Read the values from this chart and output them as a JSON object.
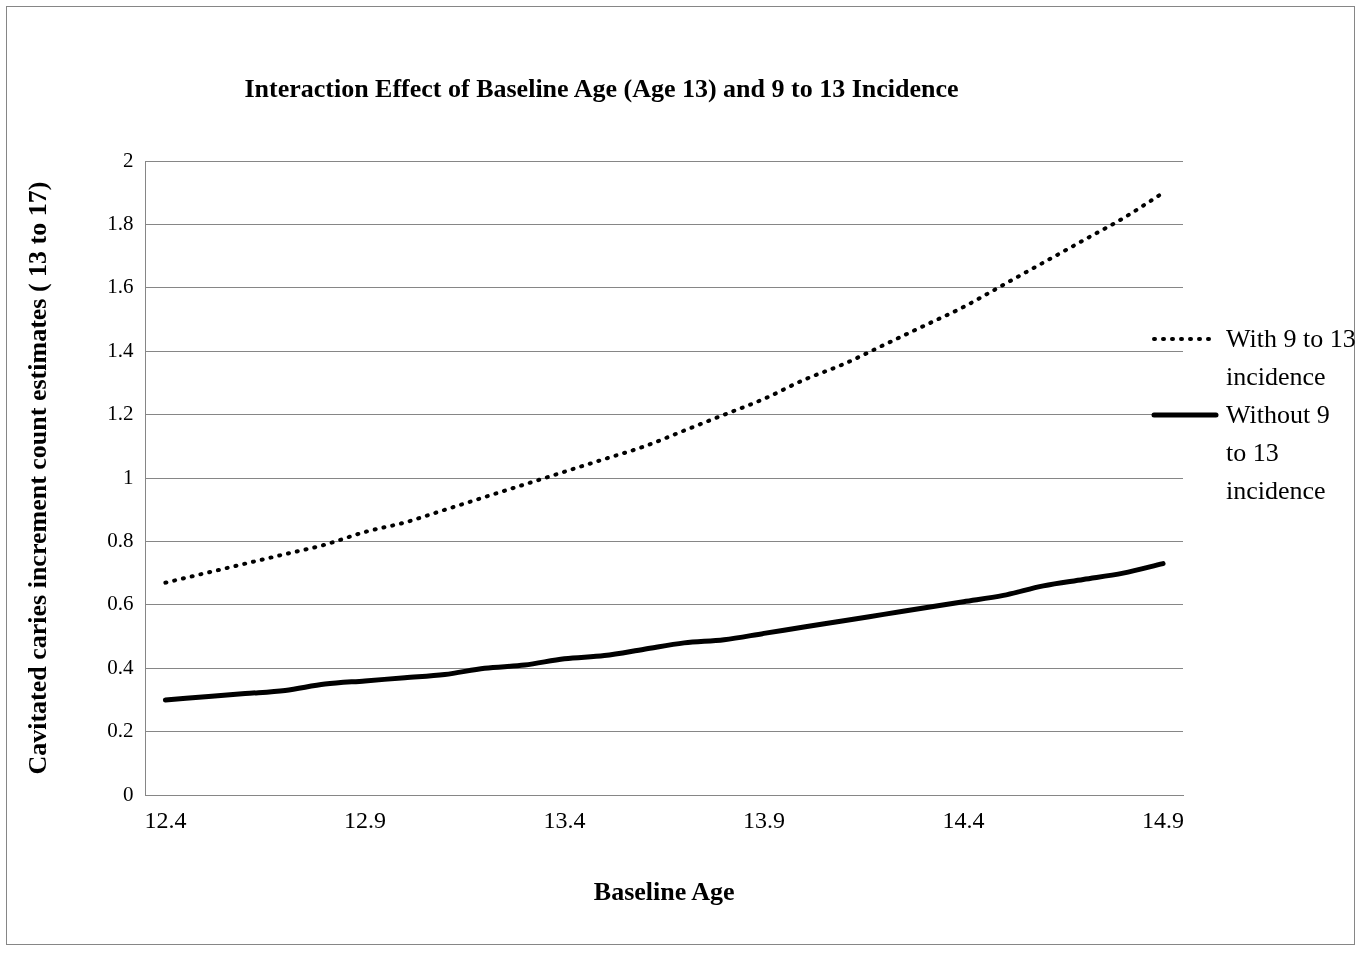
{
  "chart_data": {
    "type": "line",
    "title": "Interaction Effect of Baseline Age (Age 13) and 9 to 13 Incidence",
    "xlabel": "Baseline Age",
    "ylabel": "Cavitated caries increment count estimates ( 13 to 17)",
    "x": [
      12.4,
      12.5,
      12.6,
      12.7,
      12.8,
      12.9,
      13.0,
      13.1,
      13.2,
      13.3,
      13.4,
      13.5,
      13.6,
      13.7,
      13.8,
      13.9,
      14.0,
      14.1,
      14.2,
      14.3,
      14.4,
      14.5,
      14.6,
      14.7,
      14.8,
      14.9
    ],
    "series": [
      {
        "name": "With 9 to 13 incidence",
        "color": "#000000",
        "line_style": "dotted",
        "values": [
          0.67,
          0.7,
          0.73,
          0.76,
          0.79,
          0.83,
          0.86,
          0.9,
          0.94,
          0.98,
          1.02,
          1.06,
          1.1,
          1.15,
          1.2,
          1.25,
          1.31,
          1.36,
          1.42,
          1.48,
          1.54,
          1.61,
          1.68,
          1.75,
          1.82,
          1.9
        ]
      },
      {
        "name": "Without 9 to 13 incidence",
        "color": "#000000",
        "line_style": "solid",
        "values": [
          0.3,
          0.31,
          0.32,
          0.33,
          0.35,
          0.36,
          0.37,
          0.38,
          0.4,
          0.41,
          0.43,
          0.44,
          0.46,
          0.48,
          0.49,
          0.51,
          0.53,
          0.55,
          0.57,
          0.59,
          0.61,
          0.63,
          0.66,
          0.68,
          0.7,
          0.73
        ]
      }
    ],
    "xlim": [
      12.35,
      14.95
    ],
    "xticks": [
      12.4,
      12.9,
      13.4,
      13.9,
      14.4,
      14.9
    ],
    "ylim": [
      0,
      2
    ],
    "yticks": [
      0,
      0.2,
      0.4,
      0.6,
      0.8,
      1,
      1.2,
      1.4,
      1.6,
      1.8,
      2
    ],
    "grid": "y",
    "legend": "right",
    "marker": "none"
  }
}
